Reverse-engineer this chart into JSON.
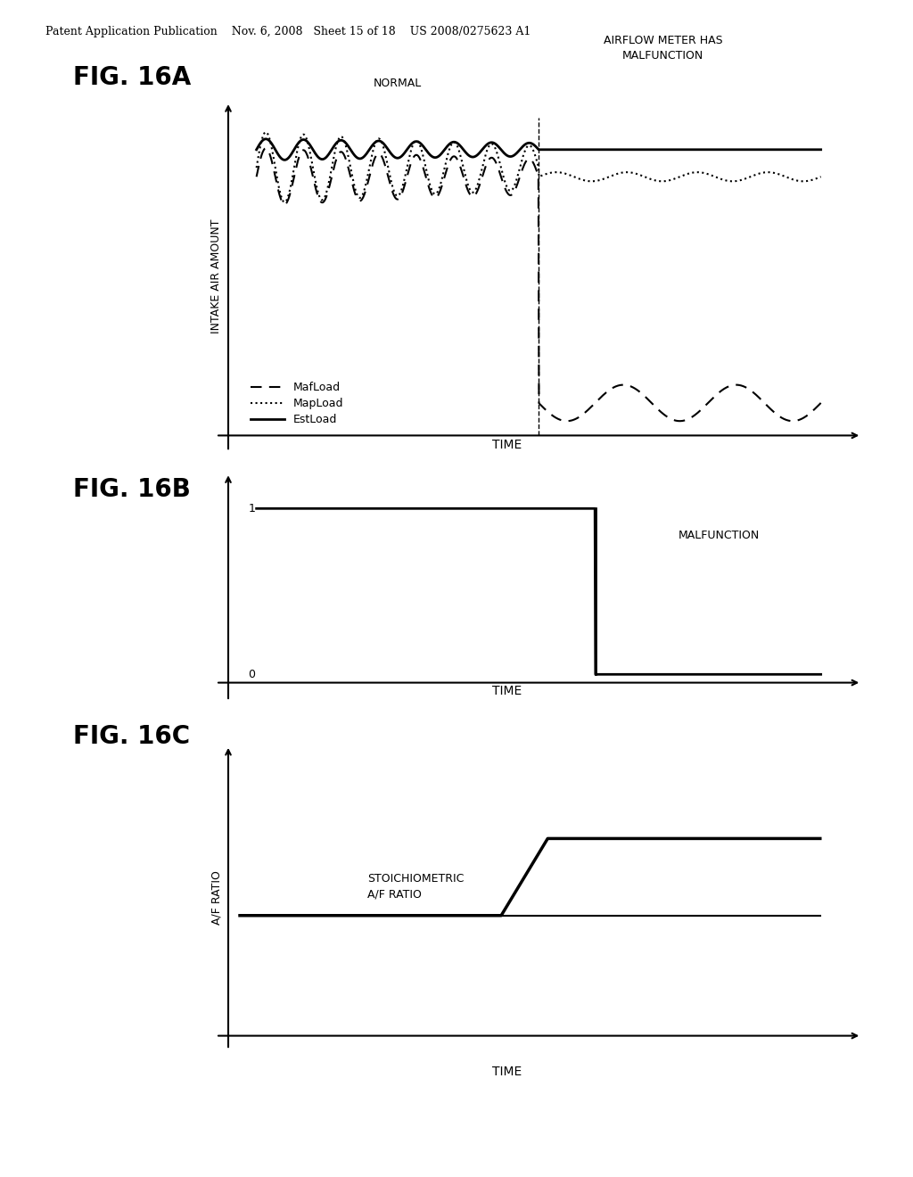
{
  "bg_color": "#ffffff",
  "text_color": "#000000",
  "header_text": "Patent Application Publication    Nov. 6, 2008   Sheet 15 of 18    US 2008/0275623 A1",
  "fig16A_title": "FIG. 16A",
  "fig16B_title": "FIG. 16B",
  "fig16C_title": "FIG. 16C",
  "fig16A_ylabel": "INTAKE AIR AMOUNT",
  "fig16A_xlabel": "TIME",
  "fig16B_xlabel": "TIME",
  "fig16C_ylabel": "A/F RATIO",
  "fig16C_xlabel": "TIME",
  "normal_label": "NORMAL",
  "malfunction_label": "AIRFLOW METER HAS\nMALFUNCTION",
  "malfunction_b_label": "MALFUNCTION",
  "stoich_label": "STOICHIOMETRIC\nA/F RATIO",
  "legend_mafload": "MafLoad",
  "legend_mapload": "MapLoad",
  "legend_estload": "EstLoad",
  "ytick_1": "1",
  "ytick_0": "0"
}
